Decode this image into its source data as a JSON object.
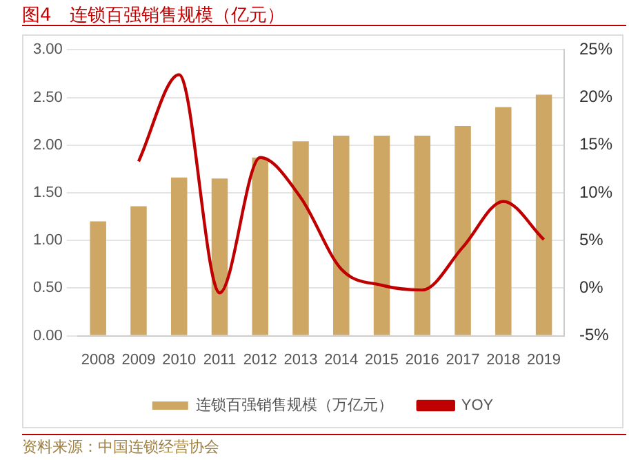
{
  "chart_data": {
    "type": "bar",
    "title": "图4　连锁百强销售规模（亿元）",
    "categories": [
      "2008",
      "2009",
      "2010",
      "2011",
      "2012",
      "2013",
      "2014",
      "2015",
      "2016",
      "2017",
      "2018",
      "2019"
    ],
    "series": [
      {
        "name": "连锁百强销售规模（万亿元）",
        "color": "#cfa765",
        "values": [
          1.2,
          1.36,
          1.66,
          1.65,
          1.87,
          2.04,
          2.1,
          2.1,
          2.1,
          2.2,
          2.4,
          2.53
        ]
      },
      {
        "name": "YOY",
        "type": "line",
        "axis": "y2",
        "color": "#c00000",
        "values": [
          null,
          13.3,
          22.4,
          -0.5,
          13.7,
          9.5,
          2,
          0.3,
          -0.2,
          4.3,
          9.1,
          5.1
        ]
      }
    ],
    "ylim": [
      0,
      3
    ],
    "yticks": [
      {
        "value": 0,
        "label": "0.00"
      },
      {
        "value": 0.5,
        "label": "0.50"
      },
      {
        "value": 1,
        "label": "1.00"
      },
      {
        "value": 1.5,
        "label": "1.50"
      },
      {
        "value": 2,
        "label": "2.00"
      },
      {
        "value": 2.5,
        "label": "2.50"
      },
      {
        "value": 3,
        "label": "3.00"
      }
    ],
    "y2lim": [
      -5,
      25
    ],
    "y2ticks": [
      {
        "value": -5,
        "label": "-5%"
      },
      {
        "value": 0,
        "label": "0%"
      },
      {
        "value": 5,
        "label": "5%"
      },
      {
        "value": 10,
        "label": "10%"
      },
      {
        "value": 15,
        "label": "15%"
      },
      {
        "value": 20,
        "label": "20%"
      },
      {
        "value": 25,
        "label": "25%"
      }
    ],
    "grid": "y",
    "legend": "bottom",
    "marker": "none",
    "annotations": [
      "资料来源：中国连锁经营协会"
    ]
  }
}
